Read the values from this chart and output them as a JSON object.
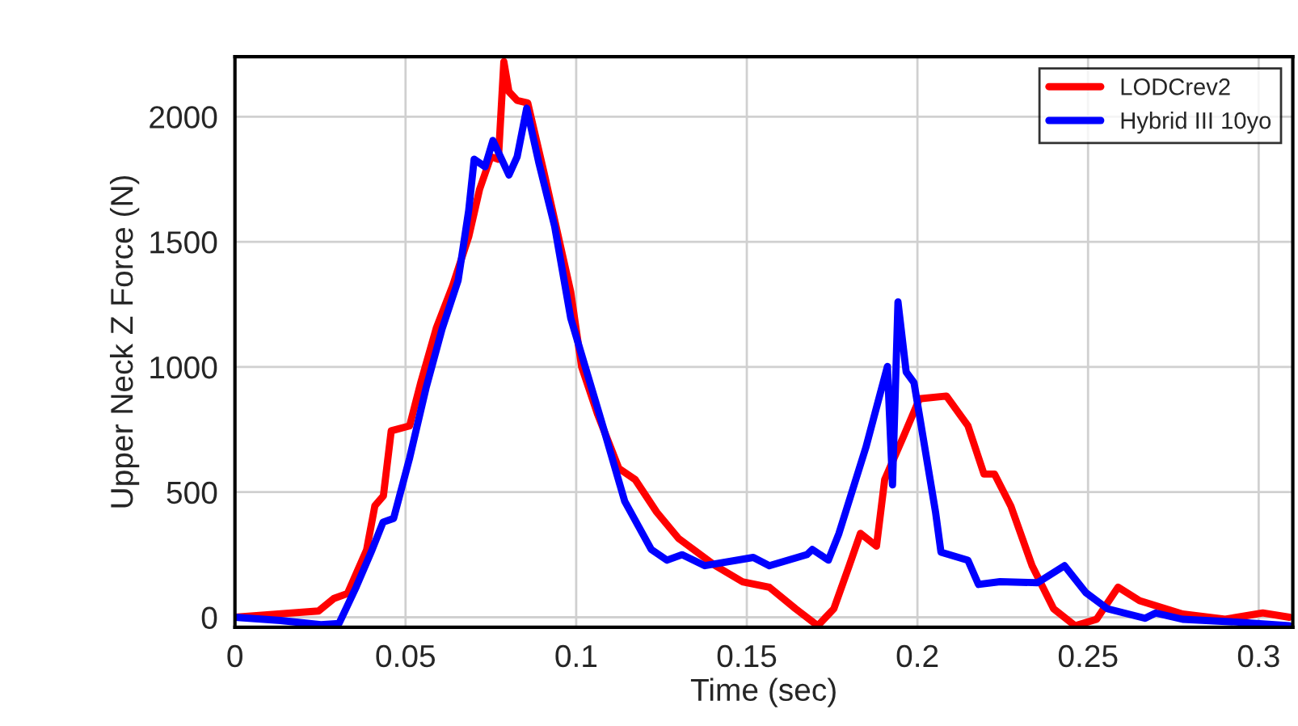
{
  "chart_data": {
    "type": "line",
    "xlabel": "Time (sec)",
    "ylabel": "Upper Neck Z Force (N)",
    "xlim": [
      0,
      0.31
    ],
    "ylim": [
      -40,
      2240
    ],
    "xticks": [
      0,
      0.05,
      0.1,
      0.15,
      0.2,
      0.25,
      0.3
    ],
    "yticks": [
      0,
      500,
      1000,
      1500,
      2000
    ],
    "grid": true,
    "legend": "top right",
    "marker": "none",
    "line_style": "solid",
    "series": [
      {
        "name": "LODCrev2",
        "color": "#ff0000",
        "x": [
          0,
          0.0245,
          0.029,
          0.033,
          0.0386,
          0.041,
          0.0435,
          0.0458,
          0.0512,
          0.0544,
          0.059,
          0.0638,
          0.0685,
          0.0717,
          0.075,
          0.0772,
          0.0788,
          0.0803,
          0.0827,
          0.0858,
          0.0906,
          0.0984,
          0.1016,
          0.1063,
          0.1125,
          0.1173,
          0.1236,
          0.13,
          0.1408,
          0.1487,
          0.1566,
          0.1643,
          0.1708,
          0.1755,
          0.18,
          0.1833,
          0.188,
          0.1904,
          0.1959,
          0.2006,
          0.2085,
          0.2148,
          0.2195,
          0.2226,
          0.2274,
          0.2336,
          0.2399,
          0.2462,
          0.2525,
          0.2588,
          0.2651,
          0.2777,
          0.2902,
          0.3012,
          0.309
        ],
        "values": [
          0,
          25,
          75,
          95,
          270,
          445,
          485,
          745,
          765,
          935,
          1155,
          1325,
          1520,
          1710,
          1840,
          1830,
          2220,
          2100,
          2065,
          2055,
          1775,
          1300,
          1000,
          810,
          595,
          550,
          420,
          315,
          206,
          142,
          120,
          34,
          -34,
          34,
          206,
          335,
          284,
          550,
          722,
          873,
          884,
          765,
          572,
          572,
          443,
          206,
          34,
          -34,
          -8,
          120,
          66,
          13,
          -8,
          17,
          0
        ]
      },
      {
        "name": "Hybrid III 10yo",
        "color": "#0000ff",
        "x": [
          0,
          0.0134,
          0.0252,
          0.0305,
          0.0355,
          0.0402,
          0.0434,
          0.0465,
          0.0512,
          0.056,
          0.0607,
          0.0654,
          0.0685,
          0.0701,
          0.0733,
          0.0756,
          0.0803,
          0.0827,
          0.0855,
          0.089,
          0.0937,
          0.0984,
          0.1031,
          0.1078,
          0.1142,
          0.122,
          0.1266,
          0.131,
          0.1377,
          0.1519,
          0.1566,
          0.1676,
          0.1692,
          0.1739,
          0.177,
          0.1849,
          0.1912,
          0.1927,
          0.1943,
          0.1967,
          0.199,
          0.2053,
          0.2069,
          0.2148,
          0.2179,
          0.2242,
          0.2352,
          0.2431,
          0.2493,
          0.2557,
          0.2667,
          0.2698,
          0.2777,
          0.2934,
          0.309
        ],
        "values": [
          0,
          -13,
          -30,
          -25,
          120,
          270,
          380,
          395,
          637,
          916,
          1152,
          1346,
          1625,
          1830,
          1800,
          1905,
          1767,
          1840,
          2034,
          1819,
          1561,
          1195,
          980,
          765,
          464,
          271,
          228,
          250,
          206,
          239,
          206,
          250,
          271,
          228,
          335,
          679,
          1002,
          529,
          1260,
          980,
          937,
          421,
          260,
          228,
          131,
          142,
          138,
          206,
          99,
          34,
          -4,
          17,
          -8,
          -19,
          -34
        ]
      }
    ]
  }
}
